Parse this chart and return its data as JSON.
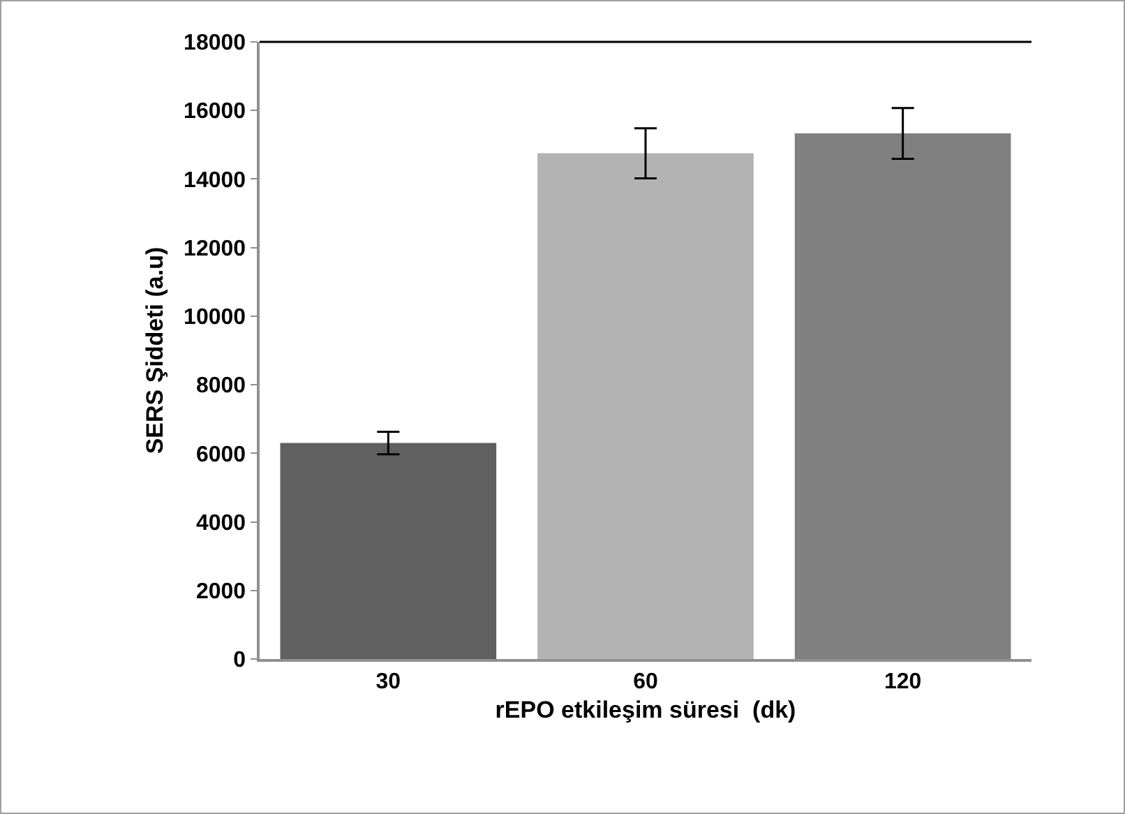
{
  "chart_data": {
    "type": "bar",
    "xlabel": "rEPO etkileşim süresi  (dk)",
    "ylabel": "SERS Şiddeti (a.u)",
    "categories": [
      "30",
      "60",
      "120"
    ],
    "values": [
      6300,
      14750,
      15330
    ],
    "colors": [
      "#606060",
      "#b3b3b3",
      "#808080"
    ],
    "errors": [
      330,
      730,
      740
    ],
    "ylim": [
      0,
      18000
    ],
    "yticks": [
      0,
      2000,
      4000,
      6000,
      8000,
      10000,
      12000,
      14000,
      16000,
      18000
    ],
    "grid": false
  }
}
